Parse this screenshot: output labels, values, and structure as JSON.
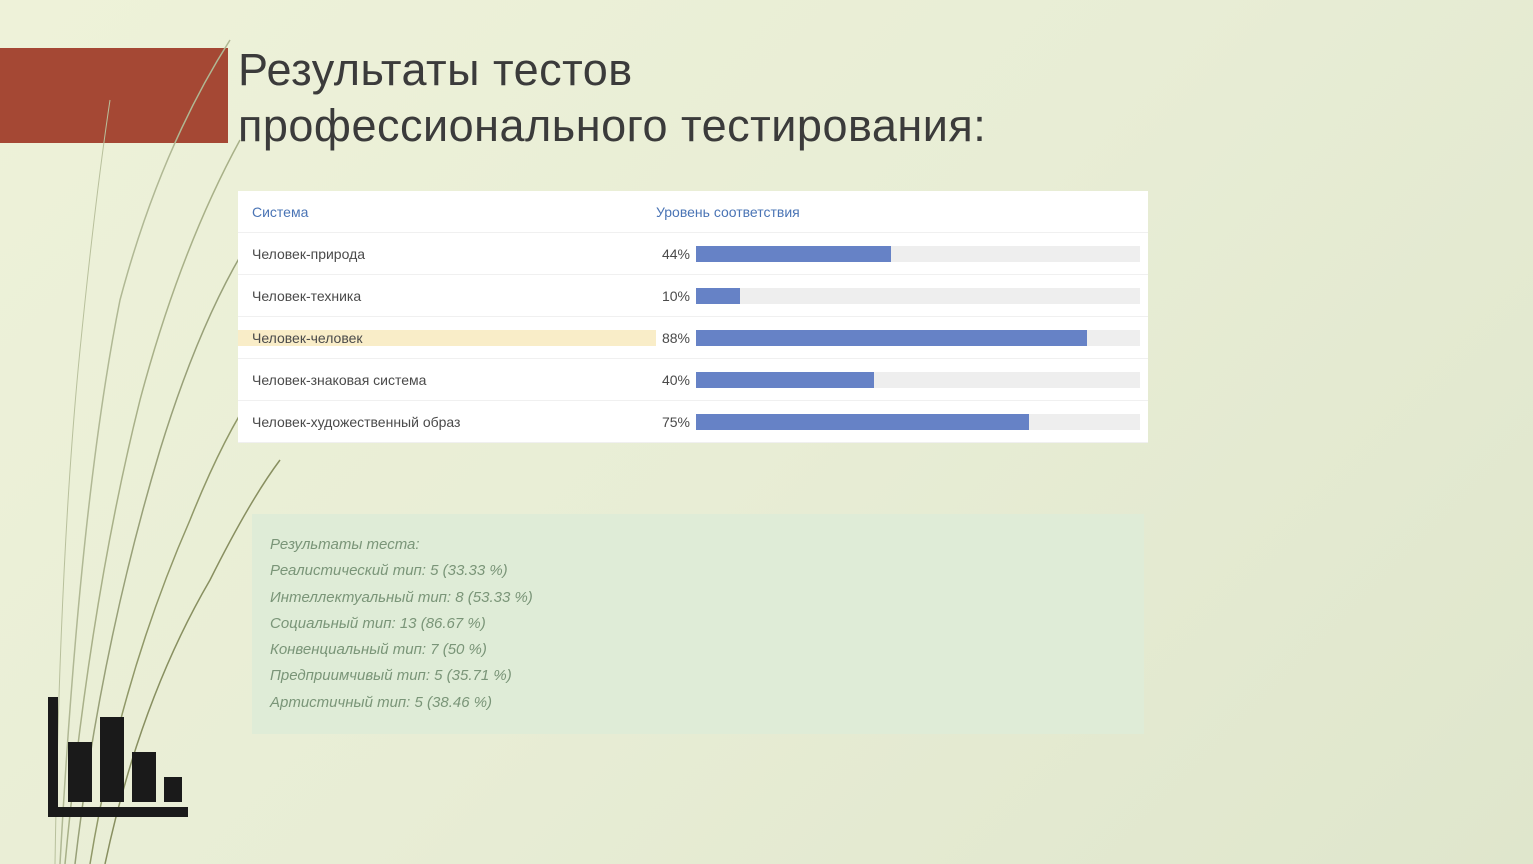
{
  "title_line1": "Результаты тестов",
  "title_line2": "профессионального тестирования:",
  "table": {
    "header_system": "Система",
    "header_level": "Уровень соответствия",
    "rows": [
      {
        "label": "Человек-природа",
        "pct": 44,
        "pct_label": "44%",
        "highlight": false
      },
      {
        "label": "Человек-техника",
        "pct": 10,
        "pct_label": "10%",
        "highlight": false
      },
      {
        "label": "Человек-человек",
        "pct": 88,
        "pct_label": "88%",
        "highlight": true
      },
      {
        "label": "Человек-знаковая система",
        "pct": 40,
        "pct_label": "40%",
        "highlight": false
      },
      {
        "label": "Человек-художественный образ",
        "pct": 75,
        "pct_label": "75%",
        "highlight": false
      }
    ],
    "bar_color": "#6682c6",
    "track_color": "#eeeeee",
    "highlight_bg": "#f9edc8"
  },
  "results": {
    "title": "Результаты теста:",
    "lines": [
      "Реалистический тип: 5 (33.33 %)",
      "Интеллектуальный тип: 8 (53.33 %)",
      "Социальный тип: 13 (86.67 %)",
      "Конвенциальный тип: 7 (50 %)",
      "Предприимчивый тип: 5 (35.71 %)",
      "Артистичный тип: 5 (38.46 %)"
    ],
    "bg_color": "#dfecd7",
    "text_color": "#7a9578"
  },
  "accent_color": "#a54834",
  "background_gradient": [
    "#eef2d9",
    "#dfe6cc"
  ]
}
